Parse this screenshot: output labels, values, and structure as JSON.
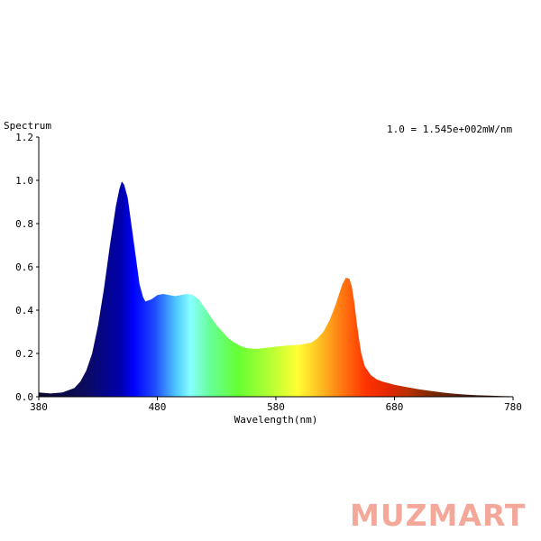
{
  "chart_data": {
    "type": "area",
    "title": "Spectrum",
    "annotation": "1.0 = 1.545e+002mW/nm",
    "xlabel": "Wavelength(nm)",
    "ylabel": "",
    "xlim": [
      380,
      780
    ],
    "ylim": [
      0,
      1.2
    ],
    "x_ticks": [
      380,
      480,
      580,
      680,
      780
    ],
    "y_ticks": [
      "0.0",
      "0.2",
      "0.4",
      "0.6",
      "0.8",
      "1.0",
      "1.2"
    ],
    "grid": false,
    "series": [
      {
        "x": [
          380,
          390,
          400,
          410,
          415,
          420,
          425,
          430,
          435,
          440,
          445,
          448,
          450,
          452,
          455,
          458,
          460,
          463,
          465,
          468,
          470,
          475,
          480,
          485,
          490,
          495,
          500,
          505,
          510,
          515,
          520,
          525,
          530,
          535,
          540,
          545,
          550,
          555,
          560,
          565,
          570,
          575,
          580,
          590,
          600,
          610,
          615,
          620,
          625,
          630,
          633,
          636,
          639,
          642,
          644,
          646,
          648,
          650,
          652,
          655,
          660,
          665,
          670,
          680,
          690,
          700,
          710,
          720,
          730,
          740,
          750,
          760,
          770,
          780
        ],
        "y": [
          0.02,
          0.015,
          0.02,
          0.04,
          0.07,
          0.12,
          0.2,
          0.33,
          0.5,
          0.7,
          0.88,
          0.96,
          0.995,
          0.98,
          0.92,
          0.8,
          0.72,
          0.6,
          0.52,
          0.46,
          0.44,
          0.45,
          0.47,
          0.475,
          0.47,
          0.465,
          0.47,
          0.475,
          0.47,
          0.45,
          0.41,
          0.37,
          0.33,
          0.3,
          0.27,
          0.25,
          0.235,
          0.225,
          0.222,
          0.222,
          0.225,
          0.228,
          0.232,
          0.237,
          0.24,
          0.25,
          0.27,
          0.3,
          0.35,
          0.42,
          0.47,
          0.52,
          0.55,
          0.545,
          0.51,
          0.44,
          0.35,
          0.27,
          0.2,
          0.14,
          0.1,
          0.08,
          0.07,
          0.055,
          0.045,
          0.035,
          0.027,
          0.02,
          0.014,
          0.01,
          0.007,
          0.005,
          0.003,
          0.002
        ]
      }
    ],
    "colors": {
      "axis": "#000000",
      "spectrum_stops": [
        "#0a0a30",
        "#0b0b60",
        "#0000b0",
        "#0000ff",
        "#1f4dff",
        "#4fc8ff",
        "#88ffff",
        "#66ff99",
        "#66ff33",
        "#aaff33",
        "#ffff33",
        "#ffbb22",
        "#ff7711",
        "#ff3300",
        "#e02800",
        "#b83000",
        "#7a2800",
        "#4a1a10",
        "#2a1008"
      ]
    }
  },
  "watermark": "MUZMART"
}
